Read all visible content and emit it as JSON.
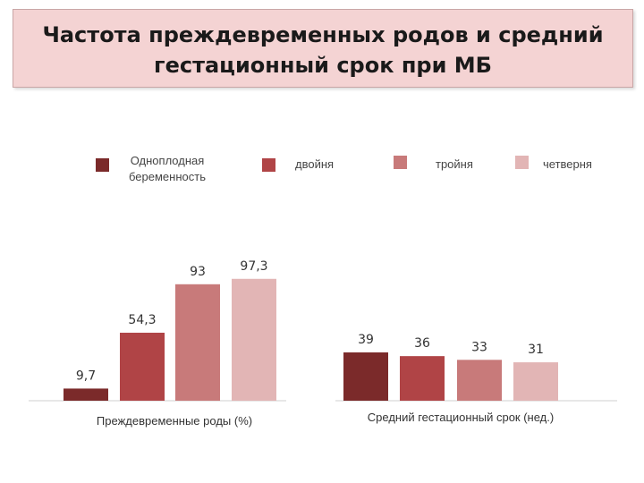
{
  "title": {
    "line1": "Частота преждевременных родов и средний",
    "line2": "гестационный срок при МБ"
  },
  "colors": [
    "#7b2a2a",
    "#b04446",
    "#c87a7a",
    "#e2b5b5"
  ],
  "chart_data": [
    {
      "type": "bar",
      "xlabel": "Преждевременные роды (%)",
      "series": [
        {
          "name": "Одноплодная беременность",
          "value": 9.7,
          "label": "9,7"
        },
        {
          "name": "двойня",
          "value": 54.3,
          "label": "54,3"
        },
        {
          "name": "тройня",
          "value": 93,
          "label": "93"
        },
        {
          "name": "четверня",
          "value": 97.3,
          "label": "97,3"
        }
      ]
    },
    {
      "type": "bar",
      "xlabel": "Средний гестационный срок (нед.)",
      "series": [
        {
          "name": "Одноплодная беременность",
          "value": 39,
          "label": "39"
        },
        {
          "name": "двойня",
          "value": 36,
          "label": "36"
        },
        {
          "name": "тройня",
          "value": 33,
          "label": "33"
        },
        {
          "name": "четверня",
          "value": 31,
          "label": "31"
        }
      ]
    }
  ],
  "legend": [
    {
      "label_line1": "Одноплодная",
      "label_line2": "беременность"
    },
    {
      "label_line1": "двойня",
      "label_line2": ""
    },
    {
      "label_line1": "тройня",
      "label_line2": ""
    },
    {
      "label_line1": "четверня",
      "label_line2": ""
    }
  ]
}
